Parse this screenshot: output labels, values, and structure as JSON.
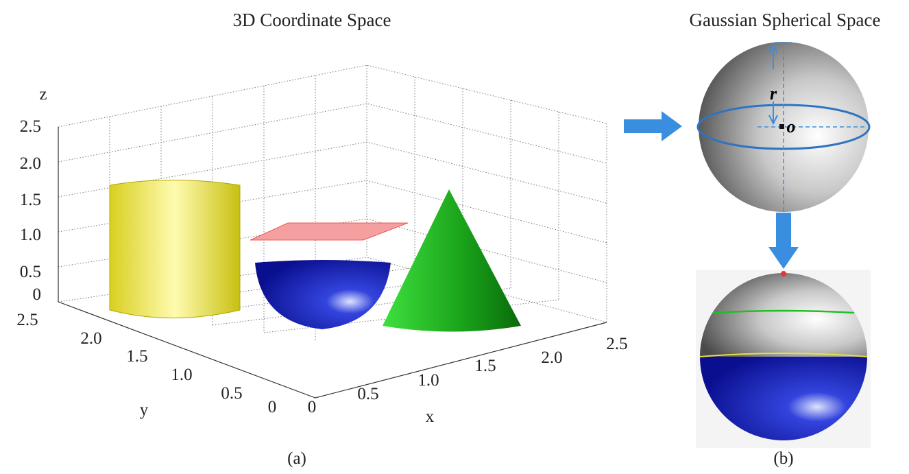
{
  "panel_a": {
    "title": "3D Coordinate Space",
    "z_label": "z",
    "z_ticks": [
      "0",
      "0.5",
      "1.0",
      "1.5",
      "2.0",
      "2.5"
    ],
    "y_label": "y",
    "y_ticks": [
      "2.5",
      "2.0",
      "1.5",
      "1.0",
      "0.5",
      "0"
    ],
    "x_label": "x",
    "x_ticks": [
      "0",
      "0.5",
      "1.0",
      "1.5",
      "2.0",
      "2.5"
    ],
    "caption": "(a)"
  },
  "panel_b": {
    "title": "Gaussian Spherical Space",
    "radius_label": "r",
    "center_label": "o",
    "caption": "(b)"
  }
}
